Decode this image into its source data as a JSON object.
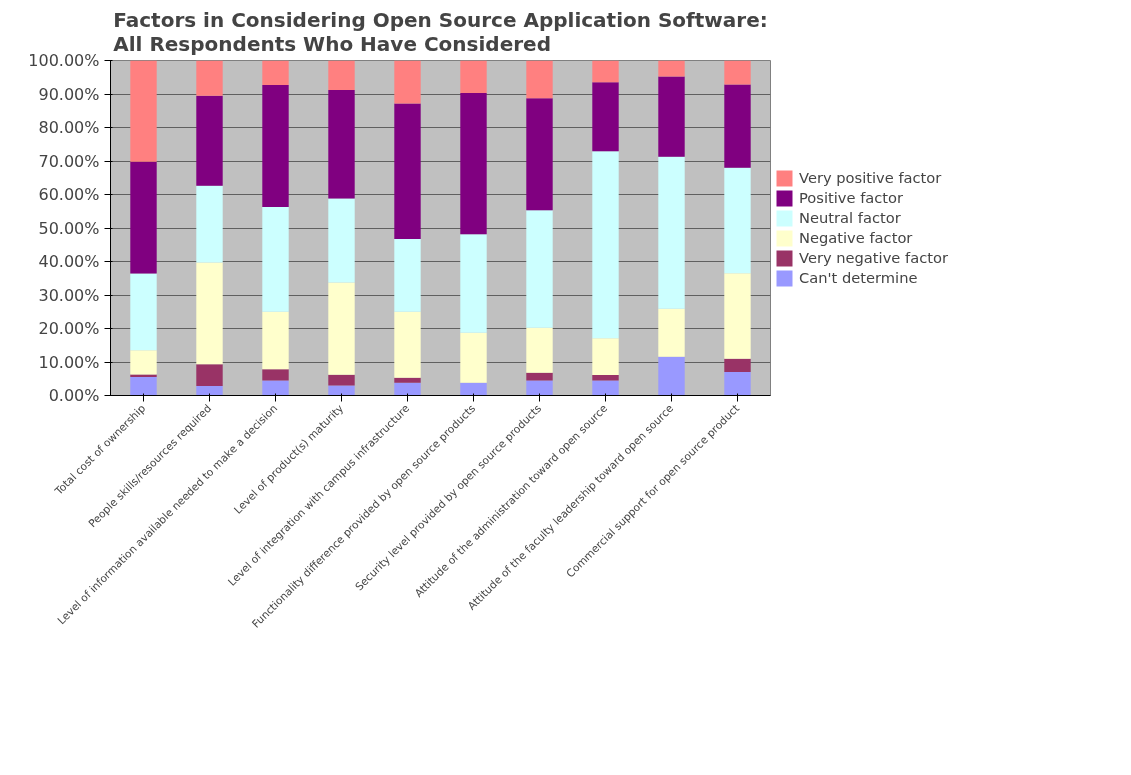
{
  "chart_data": {
    "type": "bar",
    "stacked": true,
    "title": "Factors in Considering Open Source Application Software:\nAll Respondents Who Have Considered",
    "categories": [
      "Total cost of ownership",
      "People skills/resources required",
      "Level of information available needed to make a decision",
      "Level of product(s) maturity",
      "Level of integration with campus infrastructure",
      "Functionality difference provided by open source products",
      "Security level provided by open source products",
      "Attitude of the administration toward open source",
      "Attitude of the faculty leadership toward open source",
      "Commercial support for open source product"
    ],
    "series": [
      {
        "name": "Can't determine",
        "color": "#9999ff",
        "values": [
          5.5,
          2.8,
          4.5,
          3.0,
          3.8,
          3.8,
          4.5,
          4.5,
          11.6,
          7.0
        ]
      },
      {
        "name": "Very negative factor",
        "color": "#993366",
        "values": [
          0.8,
          6.5,
          3.3,
          3.2,
          1.5,
          0,
          2.3,
          1.6,
          0,
          4.0
        ]
      },
      {
        "name": "Negative factor",
        "color": "#ffffcc",
        "values": [
          7.2,
          30.4,
          17.2,
          27.5,
          19.7,
          14.9,
          13.4,
          11.0,
          14.3,
          25.5
        ]
      },
      {
        "name": "Neutral factor",
        "color": "#ccffff",
        "values": [
          22.9,
          22.9,
          31.3,
          25.1,
          21.7,
          29.4,
          35.1,
          55.8,
          45.4,
          31.5
        ]
      },
      {
        "name": "Positive factor",
        "color": "#800080",
        "values": [
          33.4,
          26.9,
          36.4,
          32.4,
          40.5,
          42.2,
          33.4,
          20.6,
          23.9,
          24.8
        ]
      },
      {
        "name": "Very positive factor",
        "color": "#ff8080",
        "values": [
          30.2,
          10.5,
          7.3,
          8.8,
          12.8,
          9.7,
          11.3,
          6.5,
          4.8,
          7.2
        ]
      }
    ],
    "ylim": [
      0,
      100
    ],
    "yticks": [
      {
        "value": 0,
        "label": "0.00%"
      },
      {
        "value": 10,
        "label": "10.00%"
      },
      {
        "value": 20,
        "label": "20.00%"
      },
      {
        "value": 30,
        "label": "30.00%"
      },
      {
        "value": 40,
        "label": "40.00%"
      },
      {
        "value": 50,
        "label": "50.00%"
      },
      {
        "value": 60,
        "label": "60.00%"
      },
      {
        "value": 70,
        "label": "70.00%"
      },
      {
        "value": 80,
        "label": "80.00%"
      },
      {
        "value": 90,
        "label": "90.00%"
      },
      {
        "value": 100,
        "label": "100.00%"
      }
    ],
    "grid": "y",
    "legend": "right"
  }
}
